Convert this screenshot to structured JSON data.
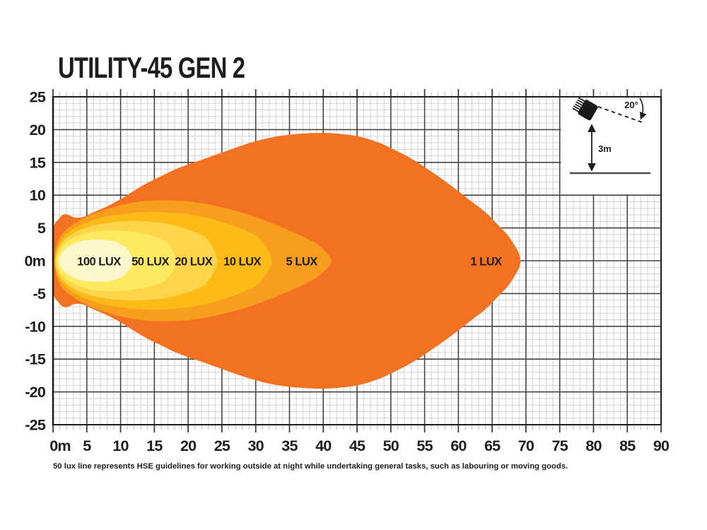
{
  "title": "UTILITY-45 GEN 2",
  "footnote": "50 lux line represents HSE guidelines for working outside at night while undertaking general tasks, such as labouring or moving goods.",
  "inset": {
    "angle_label": "20°",
    "height_label": "3m",
    "tilt_deg": 20,
    "mount_height_m": 3
  },
  "colors": {
    "background": "#ffffff",
    "text": "#1d1d1b",
    "grid_minor": "#d2d2d2",
    "grid_major": "#454545",
    "axis": "#1d1d1b",
    "tick_minor": "#b9b9b9",
    "tick_major": "#3a3a3a"
  },
  "chart_data": {
    "type": "contour",
    "title": "UTILITY-45 GEN 2",
    "grid": "on",
    "x_axis": {
      "unit": "m",
      "min": 0,
      "max": 90,
      "major_step": 5,
      "minor_step": 1,
      "tick_labels": [
        "0m",
        "5",
        "10",
        "15",
        "20",
        "25",
        "30",
        "35",
        "40",
        "45",
        "50",
        "55",
        "60",
        "65",
        "70",
        "75",
        "80",
        "85",
        "90"
      ]
    },
    "y_axis": {
      "unit": "m",
      "min": -25,
      "max": 25,
      "major_step": 5,
      "minor_step": 1,
      "tick_labels": [
        "25",
        "20",
        "15",
        "10",
        "5",
        "0m",
        "-5",
        "-10",
        "-15",
        "-20",
        "-25"
      ]
    },
    "zones": [
      {
        "label": "1 LUX",
        "lux": 1,
        "color": "#F37221",
        "label_x_m": 64.1,
        "max_reach_m": 69.2,
        "max_half_width_m": 19.5,
        "outline": [
          [
            0,
            4.3
          ],
          [
            0.8,
            6.3
          ],
          [
            1.8,
            7.1
          ],
          [
            3.2,
            6.6
          ],
          [
            4.5,
            6.7
          ],
          [
            6,
            7.4
          ],
          [
            8,
            8.3
          ],
          [
            10,
            9.4
          ],
          [
            12,
            10.7
          ],
          [
            14,
            11.9
          ],
          [
            16,
            12.9
          ],
          [
            18,
            13.9
          ],
          [
            20,
            14.7
          ],
          [
            22,
            15.4
          ],
          [
            25,
            16.5
          ],
          [
            28,
            17.6
          ],
          [
            31,
            18.5
          ],
          [
            34,
            19.1
          ],
          [
            37,
            19.4
          ],
          [
            40,
            19.5
          ],
          [
            43,
            19.3
          ],
          [
            45.5,
            18.9
          ],
          [
            48,
            18.1
          ],
          [
            50,
            17.2
          ],
          [
            53,
            15.6
          ],
          [
            56,
            13.6
          ],
          [
            59,
            11.4
          ],
          [
            62,
            9.0
          ],
          [
            64,
            7.4
          ],
          [
            66,
            5.3
          ],
          [
            67.8,
            3.2
          ],
          [
            69.2,
            0
          ]
        ]
      },
      {
        "label": "5 LUX",
        "lux": 5,
        "color": "#F89D1E",
        "label_x_m": 36.8,
        "max_reach_m": 41.2,
        "max_half_width_m": 9.3,
        "outline": [
          [
            0.2,
            0
          ],
          [
            0.5,
            2.2
          ],
          [
            1.2,
            3.9
          ],
          [
            2.5,
            5.2
          ],
          [
            4,
            6.2
          ],
          [
            6,
            7.2
          ],
          [
            8,
            7.9
          ],
          [
            10,
            8.5
          ],
          [
            12,
            8.9
          ],
          [
            14,
            9.15
          ],
          [
            16,
            9.25
          ],
          [
            18,
            9.2
          ],
          [
            20,
            9.05
          ],
          [
            23,
            8.6
          ],
          [
            26,
            7.9
          ],
          [
            29,
            7.0
          ],
          [
            32,
            5.9
          ],
          [
            35,
            4.6
          ],
          [
            37.5,
            3.4
          ],
          [
            39.5,
            2.2
          ],
          [
            41.2,
            0
          ]
        ]
      },
      {
        "label": "10 LUX",
        "lux": 10,
        "color": "#FCBB16",
        "label_x_m": 28.0,
        "max_reach_m": 32.4,
        "max_half_width_m": 7.5,
        "outline": [
          [
            0.3,
            0
          ],
          [
            0.6,
            1.9
          ],
          [
            1.3,
            3.3
          ],
          [
            2.5,
            4.5
          ],
          [
            4,
            5.4
          ],
          [
            6,
            6.2
          ],
          [
            8,
            6.8
          ],
          [
            10,
            7.1
          ],
          [
            12,
            7.35
          ],
          [
            14,
            7.45
          ],
          [
            16,
            7.45
          ],
          [
            18,
            7.3
          ],
          [
            20,
            7.1
          ],
          [
            23,
            6.5
          ],
          [
            26,
            5.6
          ],
          [
            28.5,
            4.6
          ],
          [
            30.5,
            3.4
          ],
          [
            32.4,
            0
          ]
        ]
      },
      {
        "label": "20 LUX",
        "lux": 20,
        "color": "#FDD44A",
        "label_x_m": 20.8,
        "max_reach_m": 24.3,
        "max_half_width_m": 6.1,
        "outline": [
          [
            0.35,
            0
          ],
          [
            0.7,
            1.7
          ],
          [
            1.5,
            3.0
          ],
          [
            3,
            4.2
          ],
          [
            5,
            5.1
          ],
          [
            7,
            5.6
          ],
          [
            9,
            5.9
          ],
          [
            11,
            6.05
          ],
          [
            13,
            6.05
          ],
          [
            15,
            5.9
          ],
          [
            17,
            5.6
          ],
          [
            19,
            5.1
          ],
          [
            21,
            4.4
          ],
          [
            22.8,
            3.3
          ],
          [
            24.3,
            0
          ]
        ]
      },
      {
        "label": "50 LUX",
        "lux": 50,
        "color": "#FDEA5F",
        "label_x_m": 14.4,
        "max_reach_m": 18.2,
        "max_half_width_m": 4.6,
        "outline": [
          [
            0.45,
            0
          ],
          [
            0.9,
            1.5
          ],
          [
            1.8,
            2.7
          ],
          [
            3,
            3.5
          ],
          [
            4.5,
            4.1
          ],
          [
            6,
            4.45
          ],
          [
            8,
            4.6
          ],
          [
            10,
            4.6
          ],
          [
            12,
            4.4
          ],
          [
            14,
            4.0
          ],
          [
            15.8,
            3.4
          ],
          [
            17.2,
            2.4
          ],
          [
            18.2,
            0
          ]
        ]
      },
      {
        "label": "100 LUX",
        "lux": 100,
        "color": "#FDF7CB",
        "label_x_m": 6.8,
        "max_reach_m": 11.8,
        "max_half_width_m": 3.2,
        "outline": [
          [
            0.8,
            0
          ],
          [
            1.3,
            1.2
          ],
          [
            2.2,
            2.1
          ],
          [
            3.3,
            2.7
          ],
          [
            4.5,
            3.05
          ],
          [
            6,
            3.2
          ],
          [
            7.5,
            3.2
          ],
          [
            9,
            2.95
          ],
          [
            10.3,
            2.4
          ],
          [
            11.2,
            1.5
          ],
          [
            11.8,
            0
          ]
        ]
      }
    ]
  }
}
